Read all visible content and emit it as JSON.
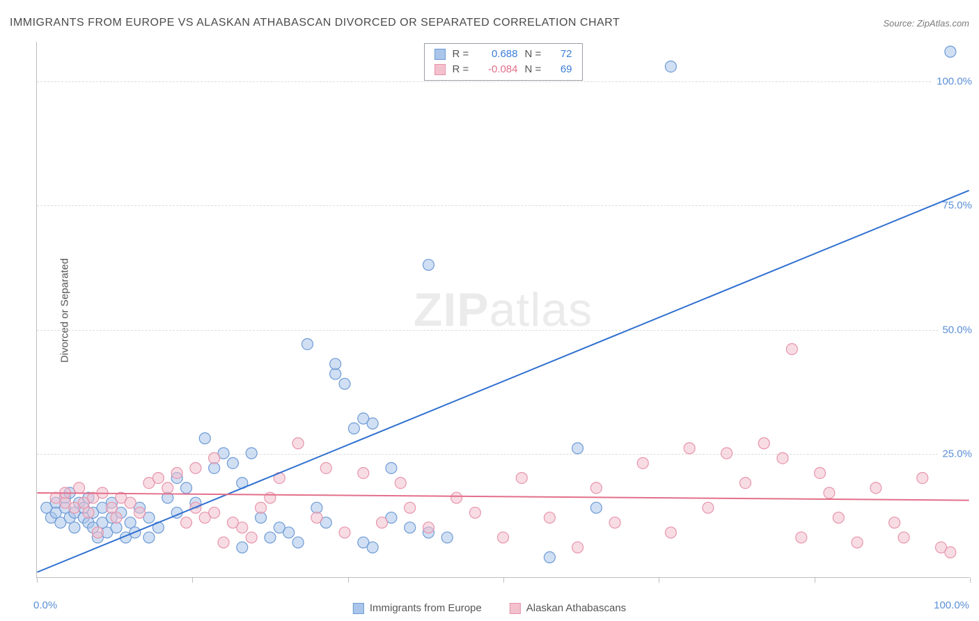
{
  "title": "IMMIGRANTS FROM EUROPE VS ALASKAN ATHABASCAN DIVORCED OR SEPARATED CORRELATION CHART",
  "source": "Source: ZipAtlas.com",
  "ylabel": "Divorced or Separated",
  "watermark_bold": "ZIP",
  "watermark_rest": "atlas",
  "chart": {
    "type": "scatter",
    "xlim": [
      0,
      100
    ],
    "ylim": [
      0,
      108
    ],
    "y_ticks": [
      25,
      50,
      75,
      100
    ],
    "y_tick_labels": [
      "25.0%",
      "50.0%",
      "75.0%",
      "100.0%"
    ],
    "x_ticks": [
      0,
      16.67,
      33.33,
      50,
      66.67,
      83.33,
      100
    ],
    "x_axis_label_left": "0.0%",
    "x_axis_label_right": "100.0%",
    "background_color": "#ffffff",
    "grid_color": "#dcdcdc",
    "axis_color": "#bdbdbd",
    "marker_radius": 8,
    "marker_opacity": 0.55,
    "line_width": 2,
    "series": [
      {
        "name": "Immigrants from Europe",
        "color_fill": "#a9c5ea",
        "color_stroke": "#6d9ad6",
        "line_color": "#2f6fd0",
        "r_value": "0.688",
        "n_value": "72",
        "regression": {
          "x1": 0,
          "y1": 1,
          "x2": 100,
          "y2": 78
        },
        "points": [
          [
            1,
            14
          ],
          [
            1.5,
            12
          ],
          [
            2,
            15
          ],
          [
            2,
            13
          ],
          [
            2.5,
            11
          ],
          [
            3,
            16
          ],
          [
            3,
            14
          ],
          [
            3.5,
            12
          ],
          [
            3.5,
            17
          ],
          [
            4,
            13
          ],
          [
            4,
            10
          ],
          [
            4.5,
            15
          ],
          [
            5,
            12
          ],
          [
            5,
            14
          ],
          [
            5.5,
            11
          ],
          [
            5.5,
            16
          ],
          [
            6,
            13
          ],
          [
            6,
            10
          ],
          [
            6.5,
            8
          ],
          [
            7,
            14
          ],
          [
            7,
            11
          ],
          [
            7.5,
            9
          ],
          [
            8,
            15
          ],
          [
            8,
            12
          ],
          [
            8.5,
            10
          ],
          [
            9,
            13
          ],
          [
            9.5,
            8
          ],
          [
            10,
            11
          ],
          [
            10.5,
            9
          ],
          [
            11,
            14
          ],
          [
            12,
            12
          ],
          [
            12,
            8
          ],
          [
            13,
            10
          ],
          [
            14,
            16
          ],
          [
            15,
            13
          ],
          [
            15,
            20
          ],
          [
            16,
            18
          ],
          [
            17,
            15
          ],
          [
            18,
            28
          ],
          [
            19,
            22
          ],
          [
            20,
            25
          ],
          [
            21,
            23
          ],
          [
            22,
            19
          ],
          [
            22,
            6
          ],
          [
            23,
            25
          ],
          [
            24,
            12
          ],
          [
            25,
            8
          ],
          [
            26,
            10
          ],
          [
            27,
            9
          ],
          [
            28,
            7
          ],
          [
            29,
            47
          ],
          [
            30,
            14
          ],
          [
            31,
            11
          ],
          [
            32,
            41
          ],
          [
            32,
            43
          ],
          [
            33,
            39
          ],
          [
            34,
            30
          ],
          [
            35,
            32
          ],
          [
            36,
            31
          ],
          [
            38,
            22
          ],
          [
            42,
            63
          ],
          [
            38,
            12
          ],
          [
            40,
            10
          ],
          [
            42,
            9
          ],
          [
            44,
            8
          ],
          [
            35,
            7
          ],
          [
            36,
            6
          ],
          [
            58,
            26
          ],
          [
            55,
            4
          ],
          [
            68,
            103
          ],
          [
            98,
            106
          ],
          [
            60,
            14
          ]
        ]
      },
      {
        "name": "Alaskan Athabascans",
        "color_fill": "#f3c0ce",
        "color_stroke": "#e794ab",
        "line_color": "#e36f8a",
        "r_value": "-0.084",
        "n_value": "69",
        "regression": {
          "x1": 0,
          "y1": 17,
          "x2": 100,
          "y2": 15.5
        },
        "points": [
          [
            2,
            16
          ],
          [
            3,
            15
          ],
          [
            3,
            17
          ],
          [
            4,
            14
          ],
          [
            4.5,
            18
          ],
          [
            5,
            15
          ],
          [
            5.5,
            13
          ],
          [
            6,
            16
          ],
          [
            6.5,
            9
          ],
          [
            7,
            17
          ],
          [
            8,
            14
          ],
          [
            8.5,
            12
          ],
          [
            9,
            16
          ],
          [
            10,
            15
          ],
          [
            11,
            13
          ],
          [
            12,
            19
          ],
          [
            13,
            20
          ],
          [
            14,
            18
          ],
          [
            15,
            21
          ],
          [
            16,
            11
          ],
          [
            17,
            14
          ],
          [
            17,
            22
          ],
          [
            18,
            12
          ],
          [
            19,
            24
          ],
          [
            19,
            13
          ],
          [
            20,
            7
          ],
          [
            21,
            11
          ],
          [
            22,
            10
          ],
          [
            23,
            8
          ],
          [
            24,
            14
          ],
          [
            25,
            16
          ],
          [
            26,
            20
          ],
          [
            28,
            27
          ],
          [
            30,
            12
          ],
          [
            31,
            22
          ],
          [
            33,
            9
          ],
          [
            35,
            21
          ],
          [
            37,
            11
          ],
          [
            39,
            19
          ],
          [
            40,
            14
          ],
          [
            42,
            10
          ],
          [
            45,
            16
          ],
          [
            47,
            13
          ],
          [
            50,
            8
          ],
          [
            52,
            20
          ],
          [
            55,
            12
          ],
          [
            58,
            6
          ],
          [
            60,
            18
          ],
          [
            62,
            11
          ],
          [
            65,
            23
          ],
          [
            68,
            9
          ],
          [
            70,
            26
          ],
          [
            72,
            14
          ],
          [
            74,
            25
          ],
          [
            76,
            19
          ],
          [
            78,
            27
          ],
          [
            80,
            24
          ],
          [
            81,
            46
          ],
          [
            82,
            8
          ],
          [
            84,
            21
          ],
          [
            85,
            17
          ],
          [
            86,
            12
          ],
          [
            88,
            7
          ],
          [
            90,
            18
          ],
          [
            92,
            11
          ],
          [
            93,
            8
          ],
          [
            95,
            20
          ],
          [
            97,
            6
          ],
          [
            98,
            5
          ]
        ]
      }
    ],
    "legend": {
      "series1_label": "Immigrants from Europe",
      "series2_label": "Alaskan Athabascans"
    },
    "stats_box": {
      "r_label": "R =",
      "n_label": "N ="
    }
  }
}
